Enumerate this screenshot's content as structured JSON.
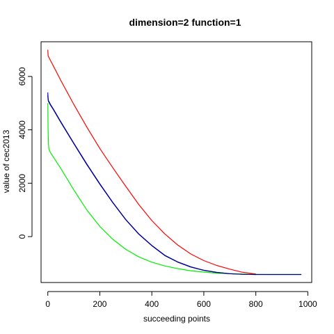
{
  "chart_data": {
    "type": "line",
    "title": "dimension=2 function=1",
    "xlabel": "succeeding points",
    "ylabel": "value of cec2013",
    "xlim": [
      -26,
      1015
    ],
    "ylim": [
      -1720,
      7300
    ],
    "xticks": [
      0,
      200,
      400,
      600,
      800,
      1000
    ],
    "yticks": [
      0,
      2000,
      4000,
      6000
    ],
    "grid": false,
    "series": [
      {
        "name": "red",
        "color": "#ff0000",
        "x": [
          0,
          1,
          2,
          5,
          10,
          20,
          50,
          100,
          150,
          200,
          250,
          300,
          350,
          400,
          450,
          500,
          550,
          600,
          650,
          700,
          750,
          800
        ],
        "y": [
          7000,
          6800,
          6750,
          6700,
          6600,
          6420,
          5850,
          4950,
          4100,
          3300,
          2580,
          1880,
          1200,
          600,
          100,
          -320,
          -650,
          -900,
          -1080,
          -1220,
          -1340,
          -1400
        ]
      },
      {
        "name": "blue",
        "color": "#0000ff",
        "x": [
          0,
          1,
          2,
          5,
          10,
          20,
          50,
          100,
          150,
          200,
          250,
          300,
          350,
          400,
          450,
          500,
          550,
          600,
          650,
          700,
          750,
          800
        ],
        "y": [
          5400,
          5200,
          5100,
          5050,
          4950,
          4800,
          4300,
          3500,
          2720,
          1980,
          1280,
          640,
          100,
          -330,
          -700,
          -950,
          -1130,
          -1260,
          -1340,
          -1390,
          -1410,
          -1420
        ]
      },
      {
        "name": "green",
        "color": "#00ee00",
        "x": [
          0,
          1,
          2,
          3,
          5,
          10,
          20,
          50,
          100,
          150,
          200,
          250,
          300,
          350,
          400,
          450,
          500,
          550,
          600,
          650,
          700,
          750,
          800,
          850,
          900,
          950,
          975
        ],
        "y": [
          5000,
          4000,
          3600,
          3400,
          3250,
          3150,
          3000,
          2550,
          1750,
          1000,
          380,
          -100,
          -480,
          -760,
          -960,
          -1100,
          -1200,
          -1280,
          -1330,
          -1370,
          -1390,
          -1405,
          -1415,
          -1420,
          -1420,
          -1420,
          -1420
        ]
      },
      {
        "name": "navy",
        "color": "#000080",
        "x": [
          0,
          1,
          2,
          5,
          10,
          20,
          50,
          100,
          150,
          200,
          250,
          300,
          350,
          400,
          450,
          500,
          550,
          600,
          650,
          700,
          750,
          800,
          850,
          900,
          950,
          975
        ],
        "y": [
          5300,
          5150,
          5080,
          5020,
          4930,
          4780,
          4280,
          3480,
          2700,
          1960,
          1270,
          630,
          90,
          -340,
          -710,
          -960,
          -1140,
          -1265,
          -1345,
          -1392,
          -1412,
          -1420,
          -1420,
          -1420,
          -1420,
          -1420
        ]
      }
    ]
  }
}
